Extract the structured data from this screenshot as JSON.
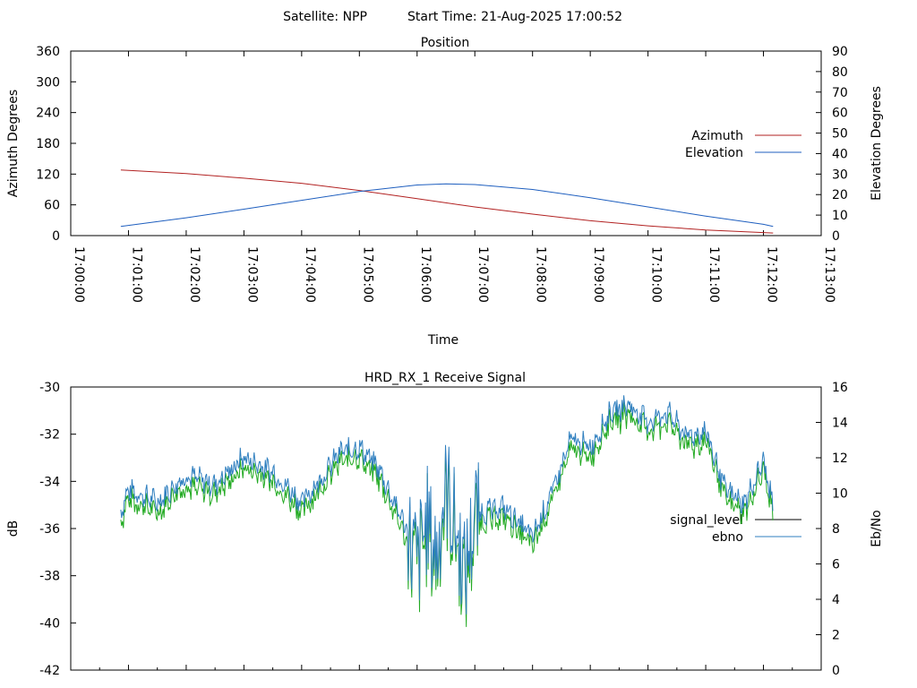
{
  "header": {
    "satellite": "Satellite: NPP",
    "start_time": "Start Time: 21-Aug-2025 17:00:52"
  },
  "colors": {
    "azimuth": "#b22222",
    "elevation": "#1f5fbf",
    "signal_level": "#000000",
    "ebno": "#2f7fbf",
    "ebno_trace": "#22aa22"
  },
  "chart_data": [
    {
      "type": "line",
      "title": "Position",
      "xlabel": "Time",
      "ylabel": "Azimuth Degrees",
      "y2label": "Elevation Degrees",
      "xticks": [
        "17:00:00",
        "17:01:00",
        "17:02:00",
        "17:03:00",
        "17:04:00",
        "17:05:00",
        "17:06:00",
        "17:07:00",
        "17:08:00",
        "17:09:00",
        "17:10:00",
        "17:11:00",
        "17:12:00",
        "17:13:00"
      ],
      "ylim": [
        0,
        360
      ],
      "yticks": [
        "0",
        "60",
        "120",
        "180",
        "240",
        "300",
        "360"
      ],
      "y2lim": [
        0,
        90
      ],
      "y2ticks": [
        "0",
        "10",
        "20",
        "30",
        "40",
        "50",
        "60",
        "70",
        "80",
        "90"
      ],
      "legend_position": "right",
      "series": [
        {
          "name": "Azimuth",
          "axis": "y",
          "x": [
            "17:00:52",
            "17:02:00",
            "17:03:00",
            "17:04:00",
            "17:05:00",
            "17:06:00",
            "17:07:00",
            "17:08:00",
            "17:09:00",
            "17:10:00",
            "17:11:00",
            "17:12:00",
            "17:12:10"
          ],
          "values": [
            128,
            121,
            112,
            102,
            88,
            72,
            56,
            42,
            29,
            19,
            11,
            6,
            5
          ]
        },
        {
          "name": "Elevation",
          "axis": "y2",
          "x": [
            "17:00:52",
            "17:02:00",
            "17:03:00",
            "17:04:00",
            "17:05:00",
            "17:06:00",
            "17:06:30",
            "17:07:00",
            "17:08:00",
            "17:09:00",
            "17:10:00",
            "17:11:00",
            "17:12:00",
            "17:12:10"
          ],
          "values": [
            4.5,
            8.7,
            12.9,
            17.2,
            21.5,
            24.7,
            25.2,
            24.9,
            22.5,
            18.5,
            14.0,
            9.5,
            5.5,
            4.5
          ]
        }
      ]
    },
    {
      "type": "line",
      "title": "HRD_RX_1 Receive Signal",
      "xlabel": "",
      "ylabel": "dB",
      "y2label": "Eb/No",
      "ylim": [
        -42,
        -30
      ],
      "yticks": [
        "-42",
        "-40",
        "-38",
        "-36",
        "-34",
        "-32",
        "-30"
      ],
      "y2lim": [
        0,
        16
      ],
      "y2ticks": [
        "0",
        "2",
        "4",
        "6",
        "8",
        "10",
        "12",
        "14",
        "16"
      ],
      "legend_position": "right",
      "series": [
        {
          "name": "signal_level",
          "axis": "y",
          "values": []
        },
        {
          "name": "ebno",
          "axis": "y2",
          "x": [
            "17:00:52",
            "17:01:00",
            "17:01:30",
            "17:02:00",
            "17:02:30",
            "17:03:00",
            "17:03:30",
            "17:04:00",
            "17:04:20",
            "17:04:40",
            "17:05:00",
            "17:05:20",
            "17:05:40",
            "17:05:50",
            "17:06:00",
            "17:06:10",
            "17:06:20",
            "17:06:30",
            "17:06:40",
            "17:06:50",
            "17:07:00",
            "17:07:30",
            "17:08:00",
            "17:08:20",
            "17:08:40",
            "17:09:00",
            "17:09:20",
            "17:09:40",
            "17:10:00",
            "17:10:20",
            "17:10:40",
            "17:11:00",
            "17:11:20",
            "17:11:40",
            "17:12:00",
            "17:12:10"
          ],
          "values": [
            9.0,
            10.2,
            9.5,
            11.0,
            10.5,
            12.0,
            11.2,
            9.5,
            10.8,
            12.3,
            12.6,
            11.4,
            9.0,
            8.0,
            6.0,
            8.5,
            6.5,
            10.5,
            8.0,
            5.5,
            8.8,
            9.2,
            7.5,
            10.0,
            13.0,
            12.6,
            14.5,
            15.0,
            14.0,
            14.6,
            13.2,
            13.5,
            10.2,
            9.4,
            11.8,
            9.2
          ]
        }
      ]
    }
  ]
}
